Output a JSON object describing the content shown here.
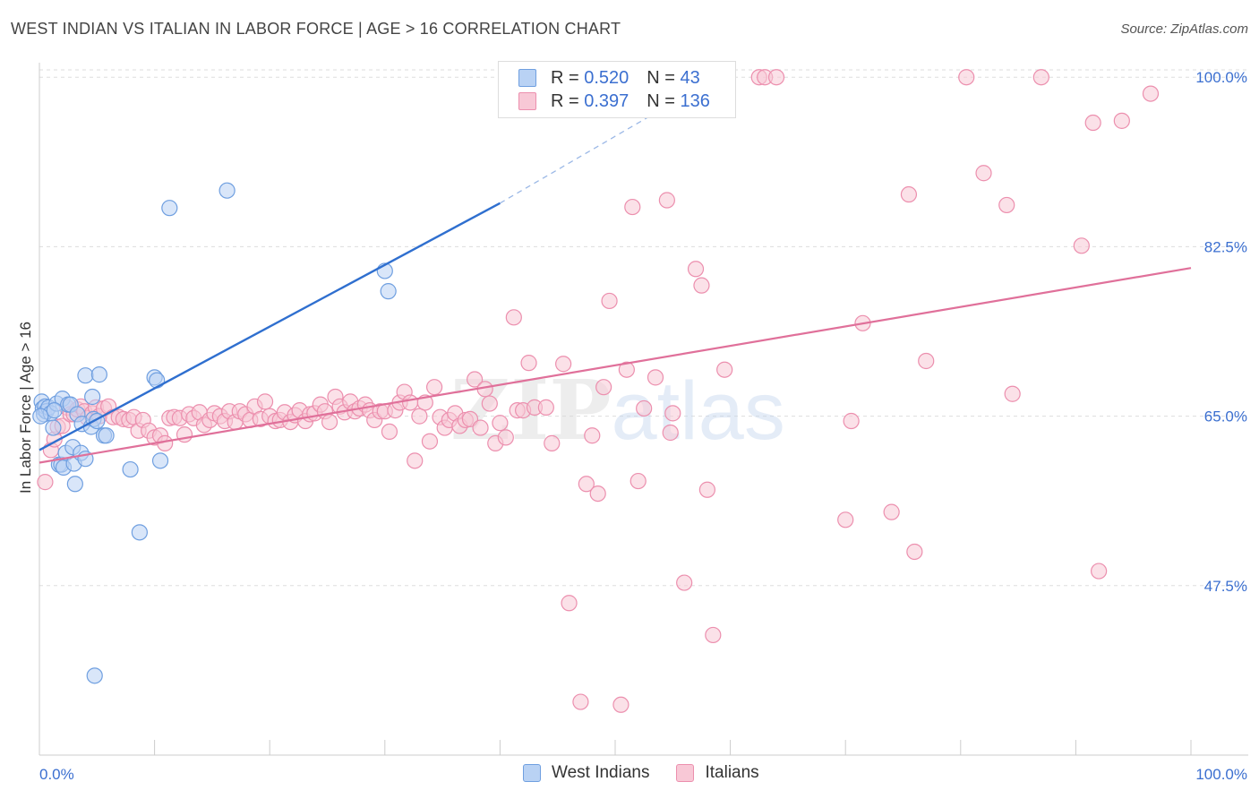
{
  "title": "WEST INDIAN VS ITALIAN IN LABOR FORCE | AGE > 16 CORRELATION CHART",
  "source": "Source: ZipAtlas.com",
  "legend": {
    "rows": [
      {
        "r_label": "R =",
        "r_value": "0.520",
        "n_label": "N =",
        "n_value": "43"
      },
      {
        "r_label": "R =",
        "r_value": "0.397",
        "n_label": "N =",
        "n_value": "136"
      }
    ]
  },
  "bottom_legend": [
    "West Indians",
    "Italians"
  ],
  "colors": {
    "west_indians_fill": "#b9d2f4",
    "west_indians_stroke": "#6f9fe0",
    "west_indians_line": "#2f6fcf",
    "italians_fill": "#f8c8d6",
    "italians_stroke": "#ec8fae",
    "italians_line": "#e0709a",
    "tick_label": "#3b6fd0",
    "grid": "#dddddd"
  },
  "chart_data": {
    "type": "scatter",
    "title": "WEST INDIAN VS ITALIAN IN LABOR FORCE | AGE > 16 CORRELATION CHART",
    "xlabel": "",
    "ylabel": "In Labor Force | Age > 16",
    "xlim": [
      0,
      100
    ],
    "ylim": [
      30,
      101.5
    ],
    "x_tick_labels": [
      "0.0%",
      "100.0%"
    ],
    "y_ticks": [
      47.5,
      65.0,
      82.5,
      100.0
    ],
    "y_tick_labels": [
      "47.5%",
      "65.0%",
      "82.5%",
      "100.0%"
    ],
    "grid": true,
    "legend_position": "top-center",
    "watermark": "ZIPatlas",
    "series": [
      {
        "name": "West Indians",
        "R": 0.52,
        "N": 43,
        "trend": {
          "x": [
            0,
            40
          ],
          "y": [
            61.5,
            87.0
          ],
          "dashed_to": [
            60,
            100.8
          ]
        },
        "points": [
          [
            0.2,
            66.5
          ],
          [
            0.3,
            65.8
          ],
          [
            0.4,
            65.2
          ],
          [
            0.5,
            66.0
          ],
          [
            0.6,
            65.5
          ],
          [
            0.8,
            65.9
          ],
          [
            1.0,
            65.3
          ],
          [
            1.2,
            63.8
          ],
          [
            1.5,
            66.3
          ],
          [
            1.7,
            60.0
          ],
          [
            1.9,
            60.0
          ],
          [
            2.0,
            66.8
          ],
          [
            2.1,
            59.7
          ],
          [
            2.3,
            61.2
          ],
          [
            2.5,
            66.2
          ],
          [
            2.7,
            66.2
          ],
          [
            2.9,
            61.8
          ],
          [
            3.0,
            60.1
          ],
          [
            3.1,
            58.0
          ],
          [
            3.3,
            65.2
          ],
          [
            3.6,
            61.2
          ],
          [
            3.7,
            64.2
          ],
          [
            4.0,
            60.6
          ],
          [
            4.0,
            69.2
          ],
          [
            4.5,
            63.9
          ],
          [
            4.6,
            67.0
          ],
          [
            4.7,
            64.7
          ],
          [
            4.8,
            38.2
          ],
          [
            5.2,
            69.3
          ],
          [
            5.6,
            63.0
          ],
          [
            5.8,
            63.0
          ],
          [
            7.9,
            59.5
          ],
          [
            8.7,
            53.0
          ],
          [
            10.0,
            69.0
          ],
          [
            10.2,
            68.7
          ],
          [
            10.5,
            60.4
          ],
          [
            11.3,
            86.5
          ],
          [
            16.3,
            88.3
          ],
          [
            30.0,
            80.0
          ],
          [
            30.3,
            77.9
          ],
          [
            0.1,
            65.0
          ],
          [
            1.3,
            65.6
          ],
          [
            5.0,
            64.5
          ]
        ]
      },
      {
        "name": "Italians",
        "R": 0.397,
        "N": 136,
        "trend": {
          "x": [
            0,
            100
          ],
          "y": [
            60.2,
            80.3
          ]
        },
        "points": [
          [
            0.5,
            58.2
          ],
          [
            1.0,
            61.5
          ],
          [
            1.3,
            62.6
          ],
          [
            1.6,
            63.9
          ],
          [
            2.0,
            64.0
          ],
          [
            2.4,
            65.9
          ],
          [
            2.7,
            65.2
          ],
          [
            3.0,
            65.2
          ],
          [
            3.3,
            65.7
          ],
          [
            3.6,
            66.0
          ],
          [
            3.9,
            65.5
          ],
          [
            4.2,
            64.8
          ],
          [
            4.6,
            65.3
          ],
          [
            4.9,
            65.9
          ],
          [
            5.2,
            65.0
          ],
          [
            5.6,
            65.8
          ],
          [
            6.0,
            66.0
          ],
          [
            6.4,
            64.9
          ],
          [
            6.9,
            64.9
          ],
          [
            7.3,
            64.7
          ],
          [
            7.8,
            64.6
          ],
          [
            8.2,
            64.9
          ],
          [
            8.6,
            63.5
          ],
          [
            9.0,
            64.6
          ],
          [
            9.5,
            63.5
          ],
          [
            10.0,
            62.8
          ],
          [
            10.5,
            63.0
          ],
          [
            10.9,
            62.2
          ],
          [
            11.3,
            64.8
          ],
          [
            11.7,
            64.9
          ],
          [
            12.2,
            64.8
          ],
          [
            12.6,
            63.1
          ],
          [
            13.0,
            65.2
          ],
          [
            13.4,
            64.8
          ],
          [
            13.9,
            65.4
          ],
          [
            14.3,
            64.1
          ],
          [
            14.8,
            64.6
          ],
          [
            15.2,
            65.3
          ],
          [
            15.7,
            65.0
          ],
          [
            16.1,
            64.5
          ],
          [
            16.5,
            65.5
          ],
          [
            17.0,
            64.4
          ],
          [
            17.4,
            65.5
          ],
          [
            17.9,
            65.2
          ],
          [
            18.3,
            64.6
          ],
          [
            18.7,
            66.0
          ],
          [
            19.2,
            64.7
          ],
          [
            19.6,
            66.5
          ],
          [
            20.0,
            65.0
          ],
          [
            20.5,
            64.5
          ],
          [
            20.9,
            64.6
          ],
          [
            21.3,
            65.4
          ],
          [
            21.8,
            64.4
          ],
          [
            22.2,
            65.1
          ],
          [
            22.6,
            65.6
          ],
          [
            23.1,
            64.5
          ],
          [
            23.5,
            65.2
          ],
          [
            23.9,
            65.3
          ],
          [
            24.4,
            66.2
          ],
          [
            24.8,
            65.5
          ],
          [
            25.2,
            64.4
          ],
          [
            25.7,
            67.0
          ],
          [
            26.1,
            66.0
          ],
          [
            26.5,
            65.4
          ],
          [
            27.0,
            66.5
          ],
          [
            27.4,
            65.5
          ],
          [
            27.8,
            65.8
          ],
          [
            28.3,
            66.2
          ],
          [
            28.7,
            65.6
          ],
          [
            29.1,
            64.6
          ],
          [
            29.6,
            65.5
          ],
          [
            30.0,
            65.5
          ],
          [
            30.4,
            63.4
          ],
          [
            30.9,
            65.6
          ],
          [
            31.3,
            66.4
          ],
          [
            31.7,
            67.5
          ],
          [
            32.2,
            66.4
          ],
          [
            32.6,
            60.4
          ],
          [
            33.0,
            65.0
          ],
          [
            33.5,
            66.4
          ],
          [
            33.9,
            62.4
          ],
          [
            34.3,
            68.0
          ],
          [
            34.8,
            64.9
          ],
          [
            35.2,
            63.8
          ],
          [
            35.6,
            64.6
          ],
          [
            36.1,
            65.3
          ],
          [
            36.5,
            64.0
          ],
          [
            37.0,
            64.6
          ],
          [
            37.4,
            64.7
          ],
          [
            37.8,
            68.8
          ],
          [
            38.3,
            63.8
          ],
          [
            38.7,
            67.8
          ],
          [
            39.1,
            66.3
          ],
          [
            39.6,
            62.2
          ],
          [
            40.0,
            64.3
          ],
          [
            40.5,
            62.8
          ],
          [
            41.2,
            75.2
          ],
          [
            41.5,
            65.6
          ],
          [
            42.0,
            65.6
          ],
          [
            42.5,
            70.5
          ],
          [
            43.0,
            65.9
          ],
          [
            44.0,
            65.9
          ],
          [
            44.5,
            62.2
          ],
          [
            45.5,
            70.4
          ],
          [
            46.0,
            45.7
          ],
          [
            47.0,
            35.5
          ],
          [
            47.5,
            58.0
          ],
          [
            48.0,
            63.0
          ],
          [
            48.5,
            57.0
          ],
          [
            49.0,
            68.0
          ],
          [
            49.5,
            76.9
          ],
          [
            50.5,
            35.2
          ],
          [
            51.0,
            69.8
          ],
          [
            51.5,
            86.6
          ],
          [
            52.0,
            58.3
          ],
          [
            52.5,
            65.8
          ],
          [
            53.5,
            69.0
          ],
          [
            54.5,
            87.3
          ],
          [
            54.8,
            63.3
          ],
          [
            55.0,
            65.3
          ],
          [
            56.0,
            47.8
          ],
          [
            57.0,
            80.2
          ],
          [
            57.5,
            78.5
          ],
          [
            58.0,
            57.4
          ],
          [
            58.5,
            42.4
          ],
          [
            59.5,
            69.8
          ],
          [
            62.5,
            100.0
          ],
          [
            63.0,
            100.0
          ],
          [
            64.0,
            100.0
          ],
          [
            70.0,
            54.3
          ],
          [
            70.5,
            64.5
          ],
          [
            71.5,
            74.6
          ],
          [
            74.0,
            55.1
          ],
          [
            75.5,
            87.9
          ],
          [
            76.0,
            51.0
          ],
          [
            77.0,
            70.7
          ],
          [
            80.5,
            100.0
          ],
          [
            82.0,
            90.1
          ],
          [
            84.0,
            86.8
          ],
          [
            84.5,
            67.3
          ],
          [
            87.0,
            100.0
          ],
          [
            90.5,
            82.6
          ],
          [
            91.5,
            95.3
          ],
          [
            92.0,
            49.0
          ],
          [
            94.0,
            95.5
          ],
          [
            96.5,
            98.3
          ]
        ]
      }
    ]
  }
}
